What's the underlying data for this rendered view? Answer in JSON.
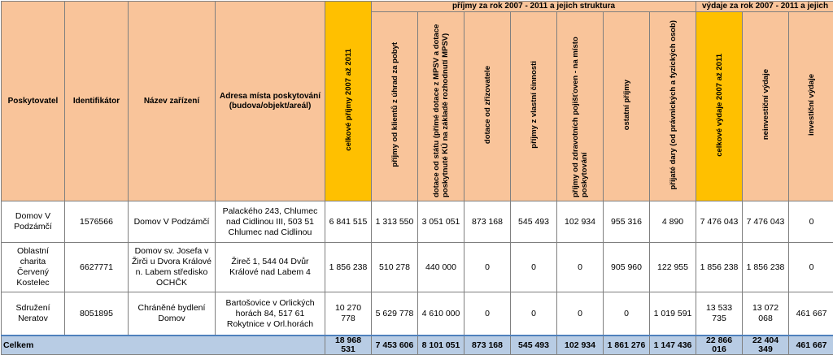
{
  "table": {
    "group_headers": {
      "income": "příjmy  za rok 2007 - 2011 a jejich struktura",
      "expense": "výdaje za rok 2007 - 2011 a jejich"
    },
    "columns": [
      "Poskytovatel",
      "Identifikátor",
      "Název zařízení",
      "Adresa místa poskytování (budova/objekt/areál)",
      "celkové příjmy 2007 až 2011",
      "příjmy od klientů z úhrad za pobyt",
      "dotace od státu (přímé dotace z MPSV a dotace poskytnuté KÚ na základě rozhodnutí MPSV)",
      "dotace od zřizovatele",
      "příjmy z vlastní činnosti",
      "příjmy od zdravotních pojišťoven - na místo poskytování",
      "ostatní příjmy",
      "přijaté dary (od právnických a fyzických osob)",
      "celkové výdaje 2007 až 2011",
      "neinvestiční výdaje",
      "investiční výdaje"
    ],
    "rows": [
      [
        "Domov V Podzámčí",
        "1576566",
        "Domov V Podzámčí",
        "Palackého 243, Chlumec nad Cidlinou III, 503 51 Chlumec nad Cidlinou",
        "6 841 515",
        "1 313 550",
        "3 051 051",
        "873 168",
        "545 493",
        "102 934",
        "955 316",
        "4 890",
        "7 476 043",
        "7 476 043",
        "0"
      ],
      [
        "Oblastní charita Červený Kostelec",
        "6627771",
        "Domov sv. Josefa v Žirči u Dvora Králové n. Labem středisko OCHČK",
        "Žireč 1, 544 04 Dvůr Králové nad Labem 4",
        "1 856 238",
        "510 278",
        "440 000",
        "0",
        "0",
        "0",
        "905 960",
        "122 955",
        "1 856 238",
        "1 856 238",
        "0"
      ],
      [
        "Sdružení Neratov",
        "8051895",
        "Chráněné bydlení Domov",
        "Bartošovice v Orlických horách 84, 517 61 Rokytnice v Orl.horách",
        "10 270 778",
        "5 629 778",
        "4 610 000",
        "0",
        "0",
        "0",
        "0",
        "1 019 591",
        "13 533 735",
        "13 072 068",
        "461 667"
      ]
    ],
    "total": {
      "label": "Celkem",
      "values": [
        "18 968 531",
        "7 453 606",
        "8 101 051",
        "873 168",
        "545 493",
        "102 934",
        "1 861 276",
        "1 147 436",
        "22 866 016",
        "22 404 349",
        "461 667"
      ]
    },
    "colors": {
      "header": "#f9c49a",
      "highlight": "#ffc000",
      "total_row": "#b8cce4"
    }
  }
}
